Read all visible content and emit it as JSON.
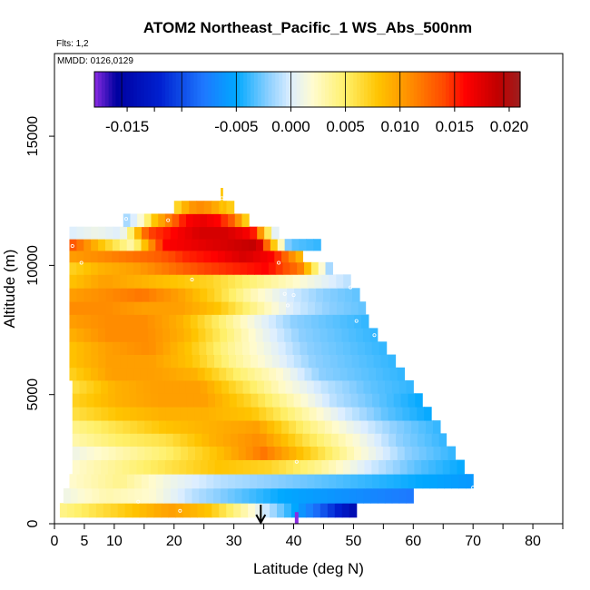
{
  "chart_data": {
    "type": "heatmap",
    "title": "ATOM2 Northeast_Pacific_1 WS_Abs_500nm",
    "notes": [
      "Flts: 1,2",
      "MMDD: 0126,0129"
    ],
    "xlabel": "Latitude (deg N)",
    "ylabel": "Altitude (m)",
    "xlim": [
      0,
      85
    ],
    "ylim": [
      0,
      18200
    ],
    "xticks": [
      0,
      5,
      10,
      20,
      30,
      40,
      50,
      60,
      70,
      80
    ],
    "xtick_labels": [
      "0",
      "5",
      "10",
      "20",
      "30",
      "40",
      "50",
      "60",
      "70",
      "80"
    ],
    "yticks": [
      0,
      5000,
      10000,
      15000
    ],
    "ytick_labels": [
      "0",
      "5000",
      "10000",
      "15000"
    ],
    "colorbar": {
      "range": [
        -0.018,
        0.021
      ],
      "ticks": [
        -0.015,
        -0.005,
        0.0,
        0.005,
        0.01,
        0.015,
        0.02
      ],
      "tick_labels": [
        "-0.015",
        "-0.005",
        "0.000",
        "0.005",
        "0.010",
        "0.015",
        "0.020"
      ],
      "stops": [
        {
          "v": -0.018,
          "c": "#8a2be2"
        },
        {
          "v": -0.016,
          "c": "#0000a0"
        },
        {
          "v": -0.012,
          "c": "#0020d0"
        },
        {
          "v": -0.008,
          "c": "#1e78ff"
        },
        {
          "v": -0.005,
          "c": "#00a8ff"
        },
        {
          "v": -0.002,
          "c": "#8ed0ff"
        },
        {
          "v": 0.0,
          "c": "#ddeeff"
        },
        {
          "v": 0.002,
          "c": "#fffbd0"
        },
        {
          "v": 0.005,
          "c": "#fff06a"
        },
        {
          "v": 0.008,
          "c": "#ffc400"
        },
        {
          "v": 0.011,
          "c": "#ff8c00"
        },
        {
          "v": 0.014,
          "c": "#ff4a00"
        },
        {
          "v": 0.016,
          "c": "#ff0000"
        },
        {
          "v": 0.019,
          "c": "#c00000"
        },
        {
          "v": 0.021,
          "c": "#9e1f1f"
        }
      ]
    },
    "rows": [
      {
        "alt": 500,
        "x0": 0.9,
        "x1": 50.5,
        "vals": [
          0.004,
          0.006,
          0.008,
          0.01,
          0.008,
          0.003,
          -0.003,
          -0.009,
          -0.015
        ]
      },
      {
        "alt": 1100,
        "x0": 1.5,
        "x1": 60.0,
        "vals": [
          0.001,
          0.003,
          0.002,
          -0.001,
          -0.003,
          -0.005,
          -0.006,
          -0.007,
          -0.008
        ]
      },
      {
        "alt": 1650,
        "x0": 2.5,
        "x1": 70.0,
        "vals": [
          0.002,
          0.004,
          0.001,
          -0.001,
          -0.002,
          -0.003,
          -0.004,
          -0.005,
          -0.006
        ]
      },
      {
        "alt": 2200,
        "x0": 3.0,
        "x1": 68.5,
        "vals": [
          0.002,
          0.004,
          0.006,
          0.008,
          0.007,
          0.004,
          0.0,
          -0.003,
          -0.005
        ]
      },
      {
        "alt": 2750,
        "x0": 3.0,
        "x1": 67.0,
        "vals": [
          0.001,
          0.003,
          0.005,
          0.008,
          0.012,
          0.007,
          0.002,
          -0.002,
          -0.004
        ]
      },
      {
        "alt": 3250,
        "x0": 3.0,
        "x1": 65.5,
        "vals": [
          0.003,
          0.005,
          0.006,
          0.009,
          0.011,
          0.006,
          0.002,
          -0.002,
          -0.004
        ]
      },
      {
        "alt": 3750,
        "x0": 3.0,
        "x1": 64.5,
        "vals": [
          0.004,
          0.006,
          0.008,
          0.009,
          0.01,
          0.005,
          0.001,
          -0.002,
          -0.004
        ]
      },
      {
        "alt": 4250,
        "x0": 3.0,
        "x1": 63.0,
        "vals": [
          0.006,
          0.008,
          0.009,
          0.009,
          0.008,
          0.004,
          0.0,
          -0.003,
          -0.005
        ]
      },
      {
        "alt": 4800,
        "x0": 3.0,
        "x1": 61.5,
        "vals": [
          0.007,
          0.009,
          0.01,
          0.01,
          0.007,
          0.003,
          -0.001,
          -0.003,
          -0.005
        ]
      },
      {
        "alt": 5300,
        "x0": 3.0,
        "x1": 60.0,
        "vals": [
          0.006,
          0.009,
          0.01,
          0.01,
          0.006,
          0.002,
          -0.001,
          -0.003,
          -0.004
        ]
      },
      {
        "alt": 5800,
        "x0": 2.5,
        "x1": 58.5,
        "vals": [
          0.007,
          0.01,
          0.01,
          0.009,
          0.005,
          0.002,
          -0.002,
          -0.003,
          -0.004
        ]
      },
      {
        "alt": 6300,
        "x0": 2.5,
        "x1": 57.0,
        "vals": [
          0.008,
          0.01,
          0.01,
          0.008,
          0.004,
          0.001,
          -0.002,
          -0.003,
          -0.004
        ]
      },
      {
        "alt": 6800,
        "x0": 2.5,
        "x1": 55.5,
        "vals": [
          0.008,
          0.01,
          0.011,
          0.008,
          0.004,
          0.001,
          -0.002,
          -0.003,
          -0.004
        ]
      },
      {
        "alt": 7300,
        "x0": 2.5,
        "x1": 54.0,
        "vals": [
          0.009,
          0.011,
          0.011,
          0.009,
          0.005,
          0.001,
          -0.002,
          -0.003,
          -0.004
        ]
      },
      {
        "alt": 7850,
        "x0": 2.5,
        "x1": 52.5,
        "vals": [
          0.01,
          0.011,
          0.011,
          0.009,
          0.005,
          0.001,
          -0.002,
          -0.003,
          -0.004
        ]
      },
      {
        "alt": 8350,
        "x0": 2.5,
        "x1": 52.0,
        "vals": [
          0.011,
          0.011,
          0.01,
          0.01,
          0.008,
          0.004,
          0.0,
          -0.002,
          -0.003
        ]
      },
      {
        "alt": 8850,
        "x0": 2.5,
        "x1": 51.0,
        "vals": [
          0.01,
          0.011,
          0.012,
          0.01,
          0.007,
          0.003,
          0.0,
          -0.002,
          -0.003
        ]
      },
      {
        "alt": 9400,
        "x0": 2.5,
        "x1": 49.5,
        "vals": [
          0.008,
          0.01,
          0.009,
          0.008,
          0.007,
          0.005,
          0.003,
          0.001,
          -0.001
        ]
      },
      {
        "alt": 9900,
        "x0": 2.5,
        "x1": 46.5,
        "vals": [
          0.007,
          0.009,
          0.01,
          0.012,
          0.014,
          0.015,
          0.016,
          0.012,
          -0.003
        ]
      },
      {
        "alt": 10350,
        "x0": 2.5,
        "x1": 41.5,
        "vals": [
          0.01,
          0.011,
          0.012,
          0.013,
          0.015,
          0.016,
          0.018,
          0.016,
          0.008
        ]
      },
      {
        "alt": 10800,
        "x0": 2.5,
        "x1": 44.5,
        "vals": [
          0.014,
          0.008,
          0.003,
          0.016,
          0.017,
          0.018,
          0.019,
          -0.003,
          -0.004
        ]
      },
      {
        "alt": 11250,
        "x0": 2.5,
        "x1": 37.5,
        "vals": [
          0.0,
          0.001,
          0.0,
          0.014,
          0.016,
          0.018,
          0.018,
          0.016,
          -0.002
        ]
      },
      {
        "alt": 11750,
        "x0": 11.5,
        "x1": 32.5,
        "vals": [
          -0.002,
          0.001,
          0.008,
          0.012,
          0.016,
          0.017,
          0.016,
          0.013,
          0.006
        ]
      },
      {
        "alt": 12250,
        "x0": 20.0,
        "x1": 30.0,
        "vals": [
          0.006,
          0.008,
          0.01,
          0.011,
          0.011,
          0.01,
          0.009,
          0.008,
          0.007
        ]
      }
    ],
    "points": [
      {
        "x": 3.0,
        "y": 10750
      },
      {
        "x": 4.5,
        "y": 10100
      },
      {
        "x": 12.0,
        "y": 11800
      },
      {
        "x": 19.0,
        "y": 11750
      },
      {
        "x": 23.0,
        "y": 9450
      },
      {
        "x": 37.5,
        "y": 10100
      },
      {
        "x": 38.5,
        "y": 8900
      },
      {
        "x": 39.0,
        "y": 8450
      },
      {
        "x": 40.0,
        "y": 8850
      },
      {
        "x": 49.5,
        "y": 9150
      },
      {
        "x": 50.5,
        "y": 7850
      },
      {
        "x": 53.5,
        "y": 7300
      },
      {
        "x": 40.5,
        "y": 2400
      },
      {
        "x": 70.0,
        "y": 1400
      },
      {
        "x": 14.0,
        "y": 850
      },
      {
        "x": 21.0,
        "y": 500
      },
      {
        "x": 28.0,
        "y": 12600
      }
    ],
    "extras": [
      {
        "kind": "bar",
        "x0": 27.8,
        "x1": 28.2,
        "y0": 12100,
        "y1": 13000,
        "v": 0.008
      },
      {
        "kind": "bar",
        "x0": 40.2,
        "x1": 40.8,
        "y0": 0,
        "y1": 450,
        "v": -0.018
      }
    ],
    "arrow_x": 34.5
  }
}
